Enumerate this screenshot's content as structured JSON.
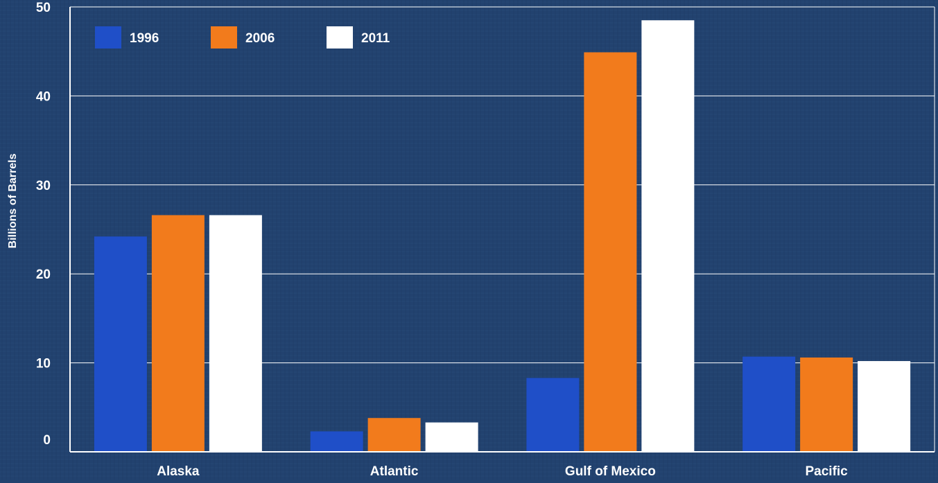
{
  "chart_data": {
    "type": "bar",
    "title": "",
    "xlabel": "",
    "ylabel": "Billions of Barrels",
    "ylim": [
      0,
      50
    ],
    "yticks": [
      0,
      10,
      20,
      30,
      40,
      50
    ],
    "grid": true,
    "legend_position": "top-left",
    "categories": [
      "Alaska",
      "Atlantic",
      "Gulf of Mexico",
      "Pacific"
    ],
    "series": [
      {
        "name": "1996",
        "color": "#1f4fc8",
        "values": [
          24.2,
          2.3,
          8.3,
          10.7
        ]
      },
      {
        "name": "2006",
        "color": "#f27b1c",
        "values": [
          26.6,
          3.8,
          44.9,
          10.6
        ]
      },
      {
        "name": "2011",
        "color": "#ffffff",
        "values": [
          26.6,
          3.3,
          48.5,
          10.2
        ]
      }
    ],
    "colors": {
      "background": "#22426f",
      "axis": "#ffffff",
      "gridline": "#ffffff"
    }
  }
}
